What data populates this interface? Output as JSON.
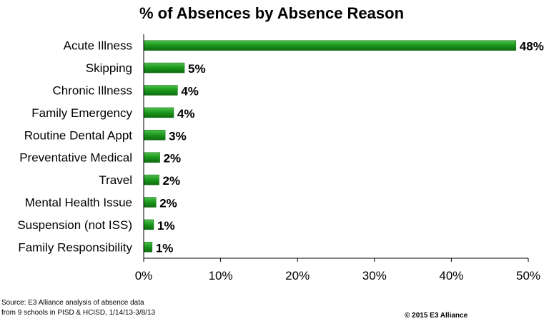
{
  "chart_data": {
    "type": "bar",
    "orientation": "horizontal",
    "title": "% of Absences by Absence Reason",
    "categories": [
      "Acute Illness",
      "Skipping",
      "Chronic Illness",
      "Family Emergency",
      "Routine Dental Appt",
      "Preventative Medical",
      "Travel",
      "Mental Health Issue",
      "Suspension (not ISS)",
      "Family Responsibility"
    ],
    "values": [
      48.4,
      5.3,
      4.4,
      3.9,
      2.8,
      2.1,
      2.0,
      1.6,
      1.3,
      1.1
    ],
    "data_labels": [
      "48%",
      "5%",
      "4%",
      "4%",
      "3%",
      "2%",
      "2%",
      "2%",
      "1%",
      "1%"
    ],
    "xlim": [
      0,
      50
    ],
    "x_ticks": [
      "0%",
      "10%",
      "20%",
      "30%",
      "40%",
      "50%"
    ],
    "xlabel": "",
    "ylabel": "",
    "grid": false,
    "legend": "none",
    "bar_color": "#1e9a1e",
    "bar_color_dark": "#0d6b0d",
    "bar_color_light": "#4fc14f"
  },
  "footer": {
    "source_line1": "Source: E3 Alliance analysis of  absence data",
    "source_line2": "from 9 schools in PISD & HCISD, 1/14/13-3/8/13",
    "copyright": "© 2015 E3 Alliance"
  }
}
